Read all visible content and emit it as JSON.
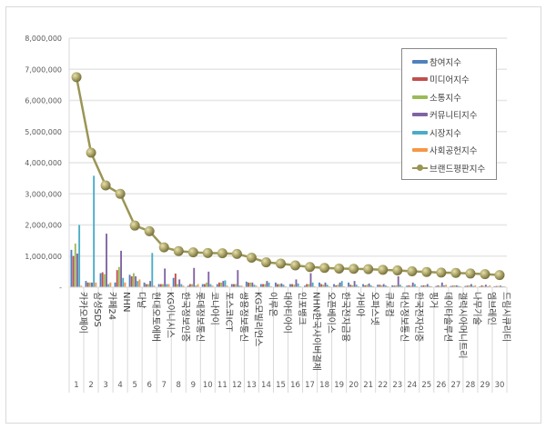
{
  "chart_data": {
    "type": "bar",
    "combo": "clustered bar + line",
    "title": "",
    "xlabel": "",
    "ylabel": "",
    "ylim": [
      0,
      8000000
    ],
    "yticks": [
      "-",
      "1,000,000",
      "2,000,000",
      "3,000,000",
      "4,000,000",
      "5,000,000",
      "6,000,000",
      "7,000,000",
      "8,000,000"
    ],
    "grid": true,
    "legend_position": "upper-right-inside",
    "ranks": [
      1,
      2,
      3,
      4,
      5,
      6,
      7,
      8,
      9,
      10,
      11,
      12,
      13,
      14,
      15,
      16,
      17,
      18,
      19,
      20,
      21,
      22,
      23,
      24,
      25,
      26,
      27,
      28,
      29,
      30
    ],
    "categories": [
      "카카오페이",
      "삼성SDS",
      "카페24",
      "NHN",
      "다날",
      "현대오토에버",
      "KG이니시스",
      "한국정보인증",
      "롯데정보통신",
      "코나아이",
      "포스코ICT",
      "쌍용정보통신",
      "KG모빌리언스",
      "이루온",
      "대아티아이",
      "인포뱅크",
      "NHN한국사이버결제",
      "오픈베이스",
      "한국전자금융",
      "가비아",
      "오파스넷",
      "큐로컴",
      "대신정보통신",
      "한국전자인증",
      "핑거",
      "데이타솔루션",
      "갤럭시아머니트리",
      "나무기술",
      "엠브레인",
      "드림시큐리티"
    ],
    "series": [
      {
        "name": "참여지수",
        "kind": "bar",
        "color": "#4f81bd",
        "values": [
          1200000,
          200000,
          450000,
          150000,
          400000,
          150000,
          100000,
          300000,
          50000,
          100000,
          100000,
          100000,
          180000,
          100000,
          150000,
          100000,
          50000,
          150000,
          100000,
          150000,
          100000,
          80000,
          60000,
          50000,
          50000,
          40000,
          40000,
          40000,
          30000,
          30000
        ]
      },
      {
        "name": "미디어지수",
        "kind": "bar",
        "color": "#c0504d",
        "values": [
          1000000,
          150000,
          480000,
          550000,
          350000,
          100000,
          100000,
          440000,
          100000,
          100000,
          150000,
          100000,
          150000,
          100000,
          100000,
          100000,
          100000,
          100000,
          60000,
          80000,
          60000,
          80000,
          50000,
          60000,
          60000,
          60000,
          50000,
          50000,
          60000,
          40000
        ]
      },
      {
        "name": "소통지수",
        "kind": "bar",
        "color": "#9bbb59",
        "values": [
          1400000,
          150000,
          420000,
          650000,
          450000,
          100000,
          100000,
          100000,
          100000,
          150000,
          150000,
          100000,
          150000,
          100000,
          100000,
          80000,
          100000,
          80000,
          80000,
          60000,
          80000,
          60000,
          60000,
          50000,
          60000,
          40000,
          60000,
          60000,
          40000,
          40000
        ]
      },
      {
        "name": "커뮤니티지수",
        "kind": "bar",
        "color": "#8064a2",
        "values": [
          1080000,
          150000,
          1720000,
          1170000,
          350000,
          200000,
          600000,
          250000,
          620000,
          500000,
          200000,
          550000,
          150000,
          200000,
          120000,
          250000,
          450000,
          150000,
          150000,
          200000,
          120000,
          100000,
          350000,
          150000,
          100000,
          150000,
          60000,
          100000,
          80000,
          50000
        ]
      },
      {
        "name": "시장지수",
        "kind": "bar",
        "color": "#4bacc6",
        "values": [
          2000000,
          3580000,
          100000,
          300000,
          200000,
          1100000,
          100000,
          100000,
          50000,
          100000,
          220000,
          50000,
          80000,
          150000,
          80000,
          120000,
          150000,
          80000,
          200000,
          80000,
          60000,
          60000,
          80000,
          100000,
          40000,
          60000,
          40000,
          40000,
          30000,
          30000
        ]
      },
      {
        "name": "사회공헌지수",
        "kind": "bar",
        "color": "#f79646",
        "values": [
          50000,
          150000,
          150000,
          150000,
          250000,
          50000,
          100000,
          50000,
          100000,
          50000,
          50000,
          50000,
          50000,
          30000,
          30000,
          30000,
          30000,
          30000,
          30000,
          30000,
          30000,
          30000,
          30000,
          30000,
          30000,
          80000,
          30000,
          60000,
          60000,
          30000
        ]
      },
      {
        "name": "브랜드평판지수",
        "kind": "line",
        "color": "#9b9555",
        "values": [
          6750000,
          4320000,
          3270000,
          3000000,
          1980000,
          1800000,
          1280000,
          1160000,
          1120000,
          1100000,
          1090000,
          1070000,
          950000,
          800000,
          760000,
          700000,
          650000,
          620000,
          600000,
          590000,
          580000,
          560000,
          540000,
          510000,
          490000,
          470000,
          460000,
          440000,
          420000,
          390000
        ]
      }
    ]
  },
  "legend": {
    "items": [
      {
        "label": "참여지수",
        "color": "#4f81bd",
        "kind": "bar"
      },
      {
        "label": "미디어지수",
        "color": "#c0504d",
        "kind": "bar"
      },
      {
        "label": "소통지수",
        "color": "#9bbb59",
        "kind": "bar"
      },
      {
        "label": "커뮤니티지수",
        "color": "#8064a2",
        "kind": "bar"
      },
      {
        "label": "시장지수",
        "color": "#4bacc6",
        "kind": "bar"
      },
      {
        "label": "사회공헌지수",
        "color": "#f79646",
        "kind": "bar"
      },
      {
        "label": "브랜드평판지수",
        "color": "#9b9555",
        "kind": "line"
      }
    ]
  }
}
